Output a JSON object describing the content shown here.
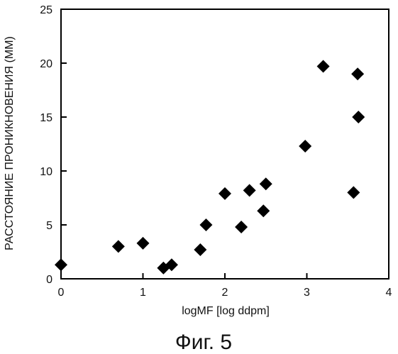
{
  "chart_data": {
    "type": "scatter",
    "title": "",
    "xlabel": "logMF [log ddpm]",
    "ylabel": "РАССТОЯНИЕ ПРОНИКНОВЕНИЯ (ММ)",
    "xlim": [
      0,
      4
    ],
    "ylim": [
      0,
      25
    ],
    "x_ticks": [
      "0",
      "1",
      "2",
      "3",
      "4"
    ],
    "y_ticks": [
      "0",
      "5",
      "10",
      "15",
      "20",
      "25"
    ],
    "grid": false,
    "marker": "diamond",
    "marker_color": "#000000",
    "points": [
      {
        "x": 0.0,
        "y": 1.3
      },
      {
        "x": 0.7,
        "y": 3.0
      },
      {
        "x": 1.0,
        "y": 3.3
      },
      {
        "x": 1.25,
        "y": 1.0
      },
      {
        "x": 1.35,
        "y": 1.3
      },
      {
        "x": 1.7,
        "y": 2.7
      },
      {
        "x": 1.77,
        "y": 5.0
      },
      {
        "x": 2.0,
        "y": 7.9
      },
      {
        "x": 2.2,
        "y": 4.8
      },
      {
        "x": 2.3,
        "y": 8.2
      },
      {
        "x": 2.47,
        "y": 6.3
      },
      {
        "x": 2.5,
        "y": 8.8
      },
      {
        "x": 2.98,
        "y": 12.3
      },
      {
        "x": 3.2,
        "y": 19.7
      },
      {
        "x": 3.57,
        "y": 8.0
      },
      {
        "x": 3.62,
        "y": 19.0
      },
      {
        "x": 3.63,
        "y": 15.0
      }
    ]
  },
  "caption": "Фиг. 5"
}
